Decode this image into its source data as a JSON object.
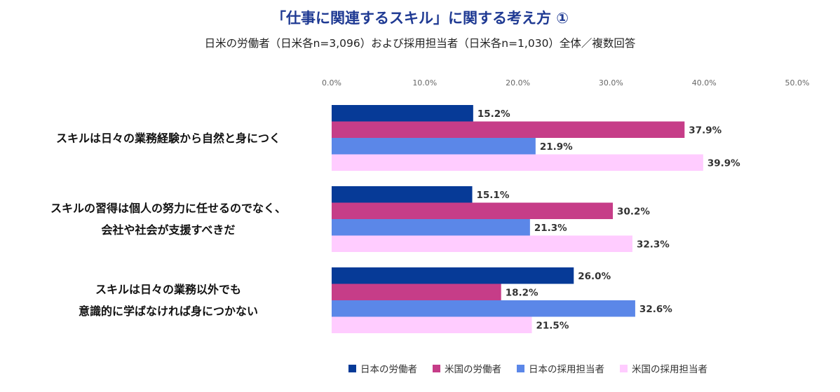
{
  "chart_data": {
    "type": "bar",
    "orientation": "horizontal",
    "title": "「仕事に関連するスキル」に関する考え方 ①",
    "subtitle": "日米の労働者（日米各n=3,096）および採用担当者（日米各n=1,030）全体／複数回答",
    "categories": [
      [
        "スキルは日々の業務経験から自然と身につく"
      ],
      [
        "スキルの習得は個人の努力に任せるのでなく、",
        "会社や社会が支援すべきだ"
      ],
      [
        "スキルは日々の業務以外でも",
        "意識的に学ばなければ身につかない"
      ]
    ],
    "x_ticks": [
      "0.0%",
      "10.0%",
      "20.0%",
      "30.0%",
      "40.0%",
      "50.0%"
    ],
    "xlim": [
      0,
      50
    ],
    "grid": false,
    "legend_position": "bottom",
    "series": [
      {
        "name": "日本の労働者",
        "color": "#063a97",
        "values": [
          15.2,
          15.1,
          26.0
        ],
        "labels": [
          "15.2%",
          "15.1%",
          "26.0%"
        ]
      },
      {
        "name": "米国の労働者",
        "color": "#c63d88",
        "values": [
          37.9,
          30.2,
          18.2
        ],
        "labels": [
          "37.9%",
          "30.2%",
          "18.2%"
        ]
      },
      {
        "name": "日本の採用担当者",
        "color": "#5b87e8",
        "values": [
          21.9,
          21.3,
          32.6
        ],
        "labels": [
          "21.9%",
          "21.3%",
          "32.6%"
        ]
      },
      {
        "name": "米国の採用担当者",
        "color": "#ffccff",
        "values": [
          39.9,
          32.3,
          21.5
        ],
        "labels": [
          "39.9%",
          "32.3%",
          "21.5%"
        ]
      }
    ]
  }
}
